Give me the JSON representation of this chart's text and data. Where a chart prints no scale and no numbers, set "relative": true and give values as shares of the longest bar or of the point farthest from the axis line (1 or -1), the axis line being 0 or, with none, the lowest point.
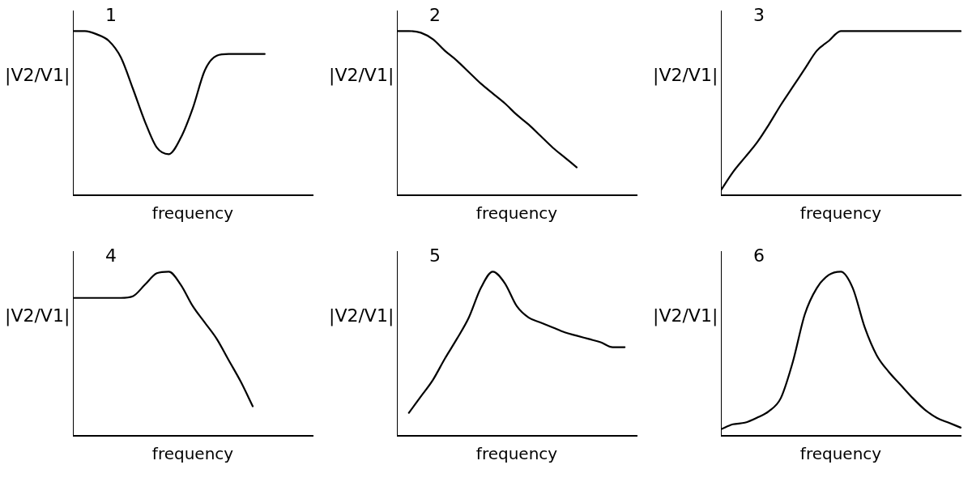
{
  "chart_data": [
    {
      "type": "line",
      "title": "1",
      "xlabel": "frequency",
      "ylabel": "|V2/V1|",
      "relative": true,
      "grid": false,
      "legend": false,
      "marker": "none",
      "categories": [
        null,
        null,
        null,
        null,
        null,
        null,
        null,
        null,
        null,
        null,
        null,
        null,
        null,
        null,
        null,
        null,
        null,
        null,
        null,
        null,
        null
      ],
      "series": [
        {
          "color": "#000000",
          "values": [
            1,
            1,
            0.98,
            0.94,
            0.84,
            0.65,
            0.45,
            0.29,
            0.25,
            0.35,
            0.53,
            0.76,
            0.85,
            0.86,
            0.86,
            0.86,
            0.86,
            null,
            null,
            null,
            null
          ]
        }
      ]
    },
    {
      "type": "line",
      "title": "2",
      "xlabel": "frequency",
      "ylabel": "|V2/V1|",
      "relative": true,
      "grid": false,
      "legend": false,
      "marker": "none",
      "categories": [
        null,
        null,
        null,
        null,
        null,
        null,
        null,
        null,
        null,
        null,
        null,
        null,
        null,
        null,
        null,
        null,
        null,
        null,
        null,
        null,
        null
      ],
      "series": [
        {
          "color": "#000000",
          "values": [
            1,
            1,
            0.99,
            0.95,
            0.88,
            0.82,
            0.75,
            0.68,
            0.62,
            0.56,
            0.49,
            0.43,
            0.36,
            0.29,
            0.23,
            0.17,
            null,
            null,
            null,
            null,
            null
          ]
        }
      ]
    },
    {
      "type": "line",
      "title": "3",
      "xlabel": "frequency",
      "ylabel": "|V2/V1|",
      "relative": true,
      "grid": false,
      "legend": false,
      "marker": "none",
      "categories": [
        null,
        null,
        null,
        null,
        null,
        null,
        null,
        null,
        null,
        null,
        null,
        null,
        null,
        null,
        null,
        null,
        null,
        null,
        null,
        null,
        null
      ],
      "series": [
        {
          "color": "#000000",
          "values": [
            0.03,
            0.14,
            0.23,
            0.32,
            0.43,
            0.55,
            0.66,
            0.77,
            0.88,
            0.94,
            1,
            1,
            1,
            1,
            1,
            1,
            1,
            1,
            1,
            1,
            1
          ]
        }
      ]
    },
    {
      "type": "line",
      "title": "4",
      "xlabel": "frequency",
      "ylabel": "|V2/V1|",
      "relative": true,
      "grid": false,
      "legend": false,
      "marker": "none",
      "categories": [
        null,
        null,
        null,
        null,
        null,
        null,
        null,
        null,
        null,
        null,
        null,
        null,
        null,
        null,
        null,
        null,
        null,
        null,
        null,
        null,
        null
      ],
      "series": [
        {
          "color": "#000000",
          "values": [
            0.84,
            0.84,
            0.84,
            0.84,
            0.84,
            0.85,
            0.92,
            0.99,
            1,
            0.92,
            0.79,
            0.69,
            0.59,
            0.46,
            0.33,
            0.18,
            null,
            null,
            null,
            null,
            null
          ]
        }
      ]
    },
    {
      "type": "line",
      "title": "5",
      "xlabel": "frequency",
      "ylabel": "|V2/V1|",
      "relative": true,
      "grid": false,
      "legend": false,
      "marker": "none",
      "categories": [
        null,
        null,
        null,
        null,
        null,
        null,
        null,
        null,
        null,
        null,
        null,
        null,
        null,
        null,
        null,
        null,
        null,
        null,
        null,
        null,
        null
      ],
      "series": [
        {
          "color": "#000000",
          "values": [
            null,
            0.14,
            0.24,
            0.34,
            0.47,
            0.59,
            0.72,
            0.9,
            1,
            0.93,
            0.79,
            0.72,
            0.69,
            0.66,
            0.63,
            0.61,
            0.59,
            0.57,
            0.54,
            0.54,
            null
          ]
        }
      ]
    },
    {
      "type": "line",
      "title": "6",
      "xlabel": "frequency",
      "ylabel": "|V2/V1|",
      "relative": true,
      "grid": false,
      "legend": false,
      "marker": "none",
      "categories": [
        null,
        null,
        null,
        null,
        null,
        null,
        null,
        null,
        null,
        null,
        null,
        null,
        null,
        null,
        null,
        null,
        null,
        null,
        null,
        null,
        null
      ],
      "series": [
        {
          "color": "#000000",
          "values": [
            0.04,
            0.07,
            0.08,
            0.11,
            0.15,
            0.23,
            0.45,
            0.74,
            0.9,
            0.98,
            1,
            0.9,
            0.66,
            0.49,
            0.39,
            0.31,
            0.23,
            0.16,
            0.11,
            0.08,
            0.05
          ]
        }
      ]
    }
  ]
}
